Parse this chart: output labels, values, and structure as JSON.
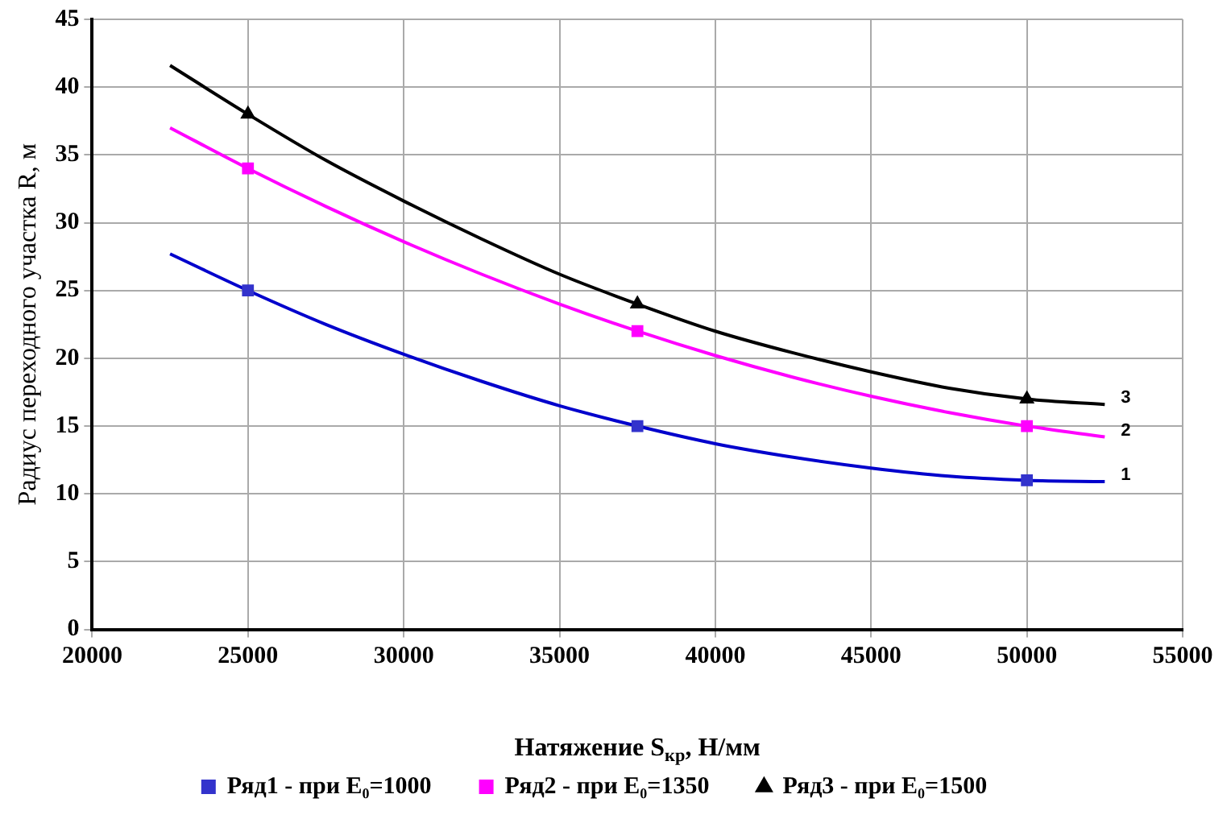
{
  "chart_data": {
    "type": "scatter",
    "xlabel": "Натяжение S$_{кр}$, Н/мм",
    "ylabel": "Радиус переходного участка R, м",
    "xlim": [
      20000,
      55000
    ],
    "xticks": [
      20000,
      25000,
      30000,
      35000,
      40000,
      45000,
      50000,
      55000
    ],
    "ylim": [
      0,
      45
    ],
    "yticks": [
      0,
      5,
      10,
      15,
      20,
      25,
      30,
      35,
      40,
      45
    ],
    "grid": true,
    "legend": "bottom",
    "series": [
      {
        "name": "Ряд1 - при E₀=1000",
        "color": "#3333cc",
        "marker": "square",
        "x": [
          25000,
          37500,
          50000
        ],
        "values": [
          25,
          15,
          11
        ]
      },
      {
        "name": "Ряд2 - при E₀=1350",
        "color": "#ff00ff",
        "marker": "square",
        "x": [
          25000,
          37500,
          50000
        ],
        "values": [
          34,
          22,
          15
        ]
      },
      {
        "name": "Ряд3 - при E₀=1500",
        "color": "#000000",
        "marker": "triangle",
        "x": [
          25000,
          37500,
          50000
        ],
        "values": [
          38,
          24,
          17
        ]
      },
      {
        "type": "line",
        "color": "#0000cc",
        "marker": "none",
        "x": [
          22500,
          25000,
          27500,
          30000,
          32500,
          35000,
          37500,
          40000,
          42500,
          45000,
          47500,
          50000,
          52500
        ],
        "values": [
          27.7,
          25,
          22.5,
          20.3,
          18.3,
          16.5,
          15,
          13.7,
          12.7,
          11.9,
          11.3,
          11,
          10.9
        ]
      },
      {
        "type": "line",
        "color": "#ff00ff",
        "marker": "none",
        "x": [
          22500,
          25000,
          27500,
          30000,
          32500,
          35000,
          37500,
          40000,
          42500,
          45000,
          47500,
          50000,
          52500
        ],
        "values": [
          37,
          34,
          31.2,
          28.6,
          26.2,
          24,
          22,
          20.2,
          18.6,
          17.2,
          16,
          15,
          14.2
        ]
      },
      {
        "type": "line",
        "color": "#000000",
        "marker": "none",
        "x": [
          22500,
          25000,
          27500,
          30000,
          32500,
          35000,
          37500,
          40000,
          42500,
          45000,
          47500,
          50000,
          52500
        ],
        "values": [
          41.6,
          38,
          34.6,
          31.6,
          28.8,
          26.2,
          24,
          22,
          20.4,
          19,
          17.8,
          17,
          16.6
        ]
      }
    ],
    "annotations": [
      "1",
      "2",
      "3"
    ]
  }
}
